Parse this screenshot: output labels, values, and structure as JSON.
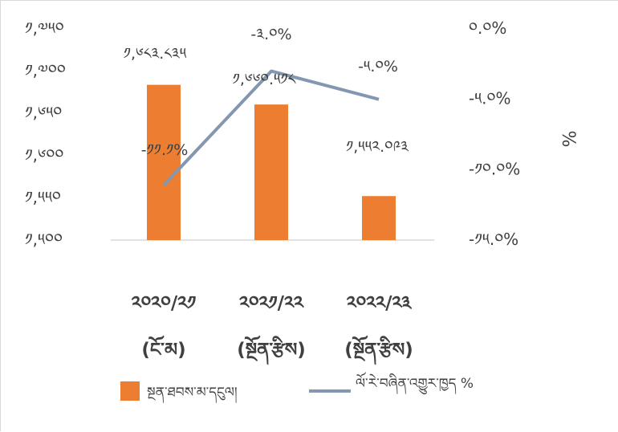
{
  "chart_data": {
    "type": "bar",
    "categories": [
      [
        "༢༠༢༠/༢༡",
        "(ངོ་མ)"
      ],
      [
        "༢༠༢༡/༢༢",
        "(སྔོན་རྩིས)"
      ],
      [
        "༢༠༢༢/༢༣",
        "(སྔོན་རྩིས)"
      ]
    ],
    "series": [
      {
        "name": "སྔན་ཐབས་མ་དངུལ།",
        "type": "bar",
        "axis": "left",
        "values": [
          1683.835,
          1660.518,
          1552.093
        ],
        "labels": [
          "༡,༦༨༣.༨༣༥",
          "༡,༦༦༠.༥༡༨",
          "༡,༥༥༢.༠༩༣"
        ],
        "color": "#ED7D31"
      },
      {
        "name": "ལོ་རེ་བཞིན་འགྱུར་ཁྱད %",
        "type": "line",
        "axis": "right",
        "values": [
          -11.1,
          -3.0,
          -5.0
        ],
        "labels": [
          "-༡༡.༡%",
          "-༣.༠%",
          "-༥.༠%"
        ],
        "color": "#8497B0"
      }
    ],
    "y_left": {
      "range": [
        1500,
        1750
      ],
      "ticks": [
        1500,
        1550,
        1600,
        1650,
        1700,
        1750
      ],
      "tick_labels": [
        "༡,༥༠༠",
        "༡,༥༥༠",
        "༡,༦༠༠",
        "༡,༦༥༠",
        "༡,༧༠༠",
        "༡,༧༥༠"
      ]
    },
    "y_right": {
      "range": [
        -15,
        0
      ],
      "ticks": [
        0,
        -5,
        -10,
        -15
      ],
      "tick_labels": [
        "༠.༠%",
        "-༥.༠%",
        "-༡༠.༠%",
        "-༡༥.༠%"
      ],
      "title": "%"
    },
    "grid": false,
    "legend_position": "bottom"
  }
}
